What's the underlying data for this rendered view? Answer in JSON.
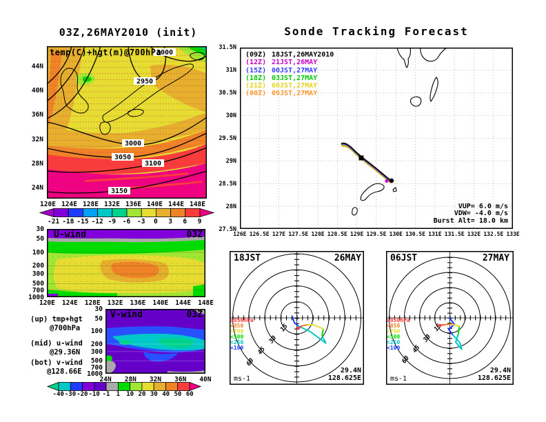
{
  "window": {
    "background": "#ffffff"
  },
  "map1": {
    "title": "03Z,26MAY2010 (init)",
    "field_label": "temp(C)+hgt(m)@700hPa",
    "contour_labels": [
      "2950",
      "3000",
      "3000",
      "3050",
      "3100",
      "3150"
    ],
    "lat_ticks": [
      "44N",
      "40N",
      "36N",
      "32N",
      "28N",
      "24N"
    ],
    "lon_ticks": [
      "120E",
      "124E",
      "128E",
      "132E",
      "136E",
      "140E",
      "144E",
      "148E"
    ],
    "colorbar_labels": [
      "-21",
      "-18",
      "-15",
      "-12",
      "-9",
      "-6",
      "-3",
      "0",
      "3",
      "6",
      "9"
    ],
    "colorbar_colors": [
      "#A000C8",
      "#8200DC",
      "#1E3CFF",
      "#00A0FF",
      "#00C8C8",
      "#00D28C",
      "#A0E632",
      "#E6DC32",
      "#E6AF2D",
      "#F08228",
      "#FA3C3C",
      "#F00082"
    ]
  },
  "sonde": {
    "title": "Sonde Tracking Forecast",
    "legend": [
      {
        "tag": "(09Z)",
        "label": "18JST,26MAY2010",
        "color": "#000000"
      },
      {
        "tag": "(12Z)",
        "label": "21JST,26MAY",
        "color": "#C800C8"
      },
      {
        "tag": "(15Z)",
        "label": "00JST,27MAY",
        "color": "#3C3CFF"
      },
      {
        "tag": "(18Z)",
        "label": "03JST,27MAY",
        "color": "#00C800"
      },
      {
        "tag": "(21Z)",
        "label": "06JST,27MAY",
        "color": "#E6D21E"
      },
      {
        "tag": "(00Z)",
        "label": "09JST,27MAY",
        "color": "#FF962D"
      }
    ],
    "lat_ticks": [
      "31.5N",
      "31N",
      "30.5N",
      "30N",
      "29.5N",
      "29N",
      "28.5N",
      "28N",
      "27.5N"
    ],
    "lon_ticks": [
      "126E",
      "126.5E",
      "127E",
      "127.5E",
      "128E",
      "128.5E",
      "129E",
      "129.5E",
      "130E",
      "130.5E",
      "131E",
      "131.5E",
      "132E",
      "132.5E",
      "133E"
    ],
    "annotations": [
      "VUP=  6.0  m/s",
      "VDW= -4.0  m/s",
      "Burst Alt= 18.0 km"
    ]
  },
  "uwind": {
    "name": "U-wind",
    "time": "03Z",
    "pressure_ticks": [
      "30",
      "50",
      "100",
      "200",
      "300",
      "500",
      "700",
      "1000"
    ],
    "lon_ticks": [
      "120E",
      "124E",
      "128E",
      "132E",
      "136E",
      "140E",
      "144E",
      "148E"
    ]
  },
  "vwind": {
    "name": "V-wind",
    "time": "03Z",
    "pressure_ticks": [
      "30",
      "50",
      "100",
      "200",
      "300",
      "500",
      "700",
      "1000"
    ],
    "lat_ticks": [
      "24N",
      "28N",
      "32N",
      "36N",
      "40N"
    ],
    "colorbar_labels": [
      "-40",
      "-30",
      "-20",
      "-10",
      "-1",
      "1",
      "10",
      "20",
      "30",
      "40",
      "50",
      "60"
    ],
    "colorbar_colors": [
      "#00D28C",
      "#00C8C8",
      "#1E3CFF",
      "#8200DC",
      "#6400C8",
      "#AAAAAA",
      "#00DC00",
      "#A0E632",
      "#E6DC32",
      "#E6AF2D",
      "#F08228",
      "#FA3C3C",
      "#F00082"
    ]
  },
  "captions": {
    "up1": "(up) tmp+hgt",
    "up2": "@700hPa",
    "mid1": "(mid) u-wind",
    "mid2": "@29.36N",
    "bot1": "(bot) v-wind",
    "bot2": "@128.66E"
  },
  "hodo_legend": [
    {
      "label": "≥850hPa",
      "color": "#FA3C3C"
    },
    {
      "label": "<850",
      "color": "#F08228"
    },
    {
      "label": "<700",
      "color": "#E6DC32"
    },
    {
      "label": "<500",
      "color": "#00DC00"
    },
    {
      "label": "<250",
      "color": "#00C8C8"
    },
    {
      "label": "<100",
      "color": "#1E3CFF"
    }
  ],
  "hodo1": {
    "time": "18JST",
    "date": "26MAY",
    "unit": "ms-1",
    "lat": "29.4N",
    "lon": "128.625E",
    "ring_labels": [
      "15",
      "30",
      "45",
      "60"
    ]
  },
  "hodo2": {
    "time": "06JST",
    "date": "27MAY",
    "unit": "ms-1",
    "lat": "29.4N",
    "lon": "128.625E",
    "ring_labels": [
      "15",
      "30",
      "45",
      "60"
    ]
  },
  "chart_data": [
    {
      "type": "heatmap",
      "subplot": "temp-height-map",
      "title": "03Z,26MAY2010 (init)",
      "field": "temp(C)+hgt(m)@700hPa",
      "x_ticks": [
        "120E",
        "124E",
        "128E",
        "132E",
        "136E",
        "140E",
        "144E",
        "148E"
      ],
      "y_ticks": [
        "24N",
        "28N",
        "32N",
        "36N",
        "40N",
        "44N"
      ],
      "contour_levels_m": [
        2950,
        3000,
        3050,
        3100,
        3150
      ],
      "shading_scale_C": [
        -21,
        -18,
        -15,
        -12,
        -9,
        -6,
        -3,
        0,
        3,
        6,
        9
      ],
      "pattern": "temperature increases southward: yellow (~0C) over Japan, red (6-9C) band near 28N, magenta (>9C) south of 27N, green/cyan (<-6C) far northeast corner"
    },
    {
      "type": "line",
      "subplot": "sonde-tracking-map",
      "title": "Sonde Tracking Forecast",
      "x_range": [
        "126E",
        "133E"
      ],
      "y_range": [
        "27.5N",
        "31.5N"
      ],
      "series": [
        {
          "name": "(09Z) 18JST,26MAY2010",
          "color": "#000000"
        },
        {
          "name": "(12Z) 21JST,26MAY",
          "color": "#C800C8"
        },
        {
          "name": "(15Z) 00JST,27MAY",
          "color": "#3C3CFF"
        },
        {
          "name": "(18Z) 03JST,27MAY",
          "color": "#00C800"
        },
        {
          "name": "(21Z) 06JST,27MAY",
          "color": "#E6D21E"
        },
        {
          "name": "(00Z) 09JST,27MAY",
          "color": "#FF962D"
        }
      ],
      "trajectory_approx_lon_lat": [
        [
          128.6,
          29.3
        ],
        [
          129.0,
          29.05
        ],
        [
          129.4,
          28.85
        ],
        [
          129.9,
          28.6
        ]
      ],
      "annotations": [
        "VUP=  6.0  m/s",
        "VDW= -4.0  m/s",
        "Burst Alt= 18.0 km"
      ]
    },
    {
      "type": "heatmap",
      "subplot": "u-wind-cross-section",
      "title": "U-wind 03Z",
      "x_ticks": [
        "120E",
        "124E",
        "128E",
        "132E",
        "136E",
        "140E",
        "144E",
        "148E"
      ],
      "y_ticks_hPa": [
        30,
        50,
        100,
        200,
        300,
        500,
        700,
        1000
      ],
      "scale_ms": [
        -40,
        -30,
        -20,
        -10,
        -1,
        1,
        10,
        20,
        30,
        40,
        50,
        60
      ],
      "pattern": "westerly jet max 40-50 m/s near 136E at 250-300hPa (orange core), easterlies (violet, -20..-10) above 50hPa, weak winds (green 1-10) near surface"
    },
    {
      "type": "heatmap",
      "subplot": "v-wind-cross-section",
      "title": "V-wind 03Z",
      "x_ticks": [
        "24N",
        "28N",
        "32N",
        "36N",
        "40N"
      ],
      "y_ticks_hPa": [
        30,
        50,
        100,
        200,
        300,
        500,
        700,
        1000
      ],
      "scale_ms": [
        -40,
        -30,
        -20,
        -10,
        -1,
        1,
        10,
        20,
        30,
        40,
        50,
        60
      ],
      "pattern": "mostly northerly (violet -10..-1) with stronger negative band (blue/cyan -30..-10) at 150-300hPa, weakest near 36N 250hPa (aqua)"
    },
    {
      "type": "line",
      "subplot": "hodograph-1",
      "title": "18JST 26MAY",
      "rings_ms": [
        15,
        30,
        45,
        60
      ],
      "unit": "ms-1",
      "location": [
        "29.4N",
        "128.625E"
      ],
      "levels": [
        "≥850hPa",
        "<850",
        "<700",
        "<500",
        "<250",
        "<100"
      ],
      "pattern": "wind hodograph: low levels (red/orange) near origin, mid levels (yellow/green) ~15-25 m/s SE quadrant, upper cyan tip ~35 m/s toward ESE, blue (<100hPa) back near origin"
    },
    {
      "type": "line",
      "subplot": "hodograph-2",
      "title": "06JST 27MAY",
      "rings_ms": [
        15,
        30,
        45,
        60
      ],
      "unit": "ms-1",
      "location": [
        "29.4N",
        "128.625E"
      ],
      "levels": [
        "≥850hPa",
        "<850",
        "<700",
        "<500",
        "<250",
        "<100"
      ],
      "pattern": "similar hodograph, cyan loop to ~25 m/s SSE, red/orange endpoint just left of origin"
    }
  ]
}
